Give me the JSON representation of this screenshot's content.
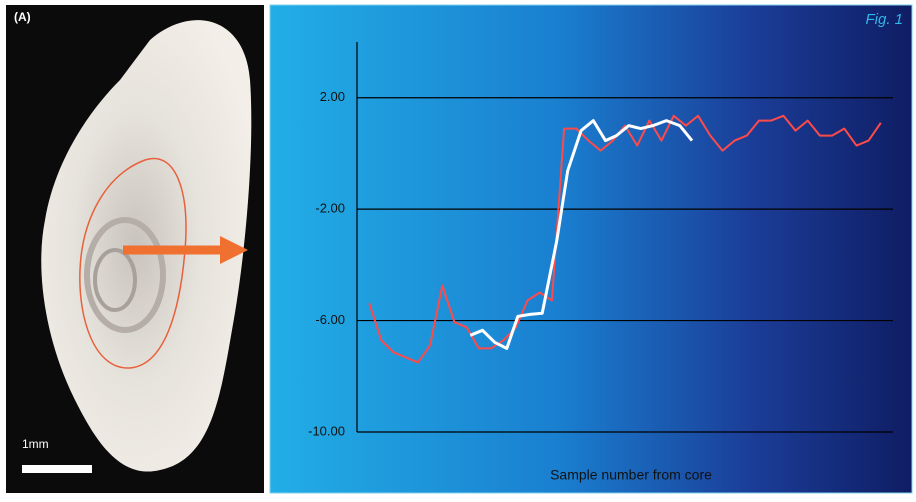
{
  "panel_label": "(A)",
  "scale_label": "1mm",
  "fig_label": "Fig. 1",
  "chart_data": {
    "type": "line",
    "x_label": "Sample number from core",
    "xlim": [
      0,
      44
    ],
    "ylim": [
      -10,
      4
    ],
    "yticks": [
      {
        "value": 2,
        "label": "2.00"
      },
      {
        "value": -2,
        "label": "-2.00"
      },
      {
        "value": -6,
        "label": "-6.00"
      },
      {
        "value": -10,
        "label": "-10.00"
      }
    ],
    "grid": true,
    "series": [
      {
        "color": "#ff4a4a",
        "x": [
          1,
          2,
          3,
          4,
          5,
          6,
          7,
          8,
          9,
          10,
          11,
          12,
          13,
          14,
          15,
          16,
          17,
          18,
          19,
          20,
          21,
          22,
          23,
          24,
          25,
          26,
          27,
          28,
          29,
          30,
          31,
          32,
          33,
          34,
          35,
          36,
          37,
          38,
          39,
          40,
          41,
          42,
          43
        ],
        "values": [
          -5.38,
          -6.71,
          -7.14,
          -7.32,
          -7.5,
          -6.89,
          -4.74,
          -6.06,
          -6.24,
          -7.0,
          -7.0,
          -6.71,
          -6.28,
          -5.28,
          -4.99,
          -5.28,
          0.89,
          0.89,
          0.46,
          0.1,
          0.46,
          1.0,
          0.28,
          1.18,
          0.46,
          1.35,
          1.0,
          1.35,
          0.64,
          0.1,
          0.46,
          0.64,
          1.18,
          1.18,
          1.35,
          0.82,
          1.18,
          0.64,
          0.64,
          0.89,
          0.28,
          0.46,
          1.1
        ]
      },
      {
        "color": "#ffffff",
        "x": [
          9.3,
          10.3,
          11.3,
          12.3,
          13.2,
          14.2,
          15.2,
          16.4,
          17.3,
          18.4,
          19.4,
          20.4,
          21.3,
          22.3,
          23.3,
          24.3,
          25.4,
          26.5,
          27.5
        ],
        "values": [
          -6.53,
          -6.35,
          -6.78,
          -7.0,
          -5.85,
          -5.78,
          -5.74,
          -3.13,
          -0.62,
          0.82,
          1.18,
          0.46,
          0.64,
          1.0,
          0.89,
          1.0,
          1.18,
          1.0,
          0.46
        ]
      }
    ]
  }
}
